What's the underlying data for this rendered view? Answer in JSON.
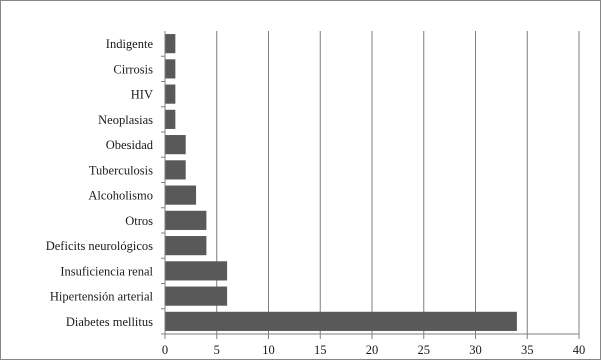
{
  "chart_data": {
    "type": "bar",
    "orientation": "horizontal",
    "title": "",
    "xlabel": "",
    "ylabel": "",
    "categories": [
      "Diabetes mellitus",
      "Hipertensión arterial",
      "Insuficiencia renal",
      "Deficits neurológicos",
      "Otros",
      "Alcoholismo",
      "Tuberculosis",
      "Obesidad",
      "Neoplasias",
      "HIV",
      "Cirrosis",
      "Indigente"
    ],
    "values": [
      34,
      6,
      6,
      4,
      4,
      3,
      2,
      2,
      1,
      1,
      1,
      1
    ],
    "xlim": [
      0,
      40
    ],
    "xticks": [
      "0",
      "5",
      "10",
      "15",
      "20",
      "25",
      "30",
      "35",
      "40"
    ],
    "grid": "vertical",
    "legend": "none",
    "bar_color": "#595959",
    "grid_color": "#7f7f7f"
  }
}
